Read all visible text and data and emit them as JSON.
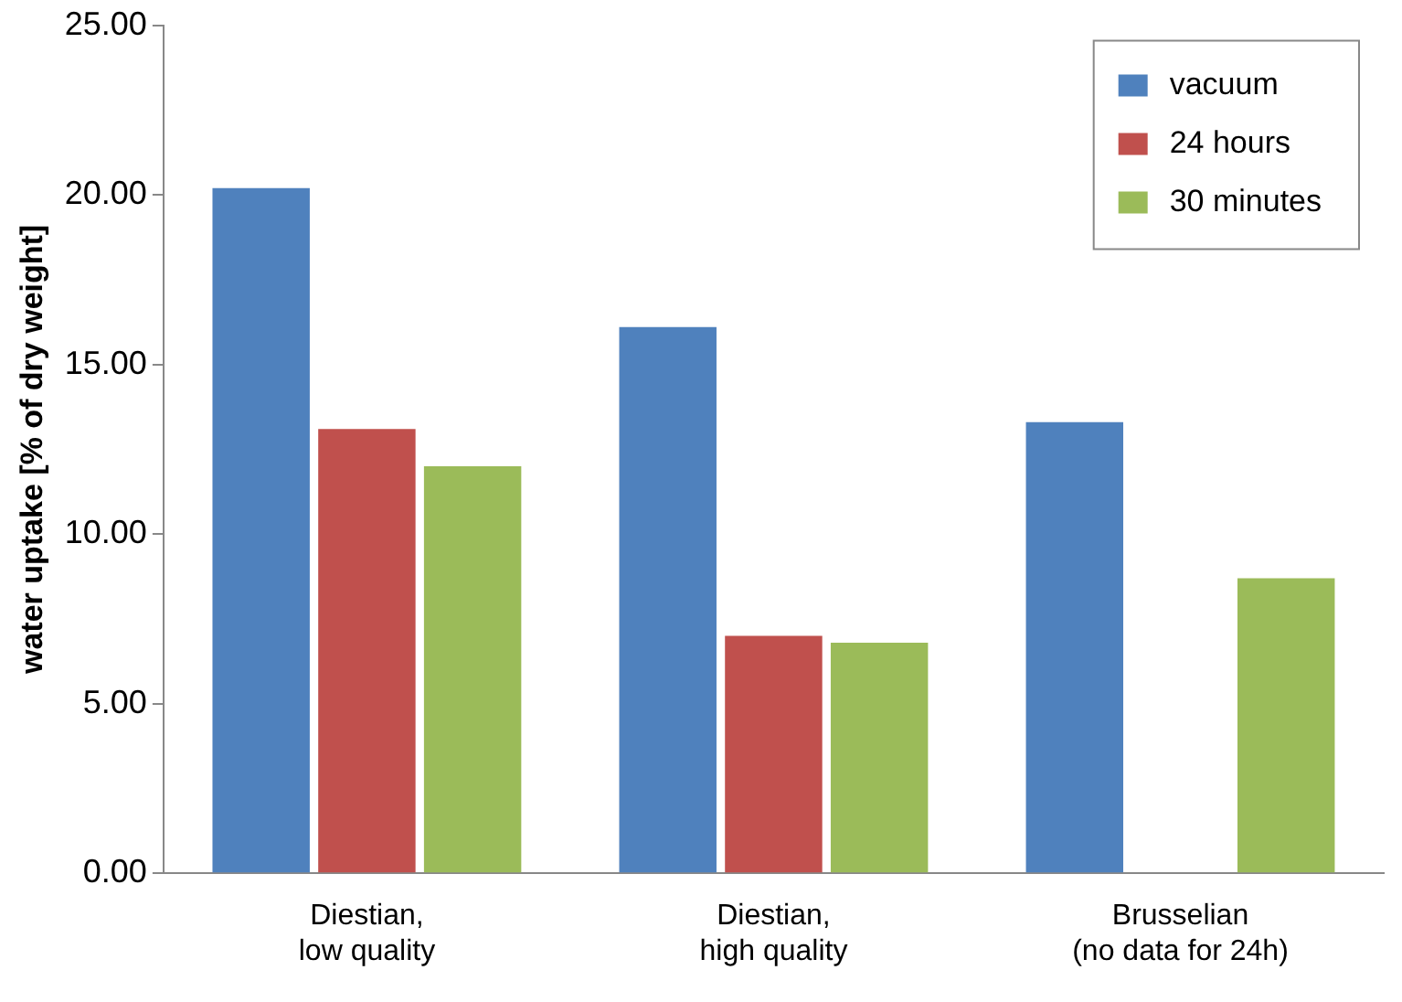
{
  "chart_data": {
    "type": "bar",
    "ylabel": "water uptake [% of dry weight]",
    "categories": [
      "Diestian,\nlow quality",
      "Diestian,\nhigh quality",
      "Brusselian\n(no data for 24h)"
    ],
    "series": [
      {
        "name": "vacuum",
        "color": "#4f81bd",
        "values": [
          20.2,
          16.1,
          13.3
        ]
      },
      {
        "name": "24 hours",
        "color": "#c0504d",
        "values": [
          13.1,
          7.0,
          null
        ]
      },
      {
        "name": "30 minutes",
        "color": "#9bbb59",
        "values": [
          12.0,
          6.8,
          8.7
        ]
      }
    ],
    "ylim": [
      0,
      25
    ],
    "yticks": [
      {
        "value": 0,
        "label": "0.00"
      },
      {
        "value": 5,
        "label": "5.00"
      },
      {
        "value": 10,
        "label": "10.00"
      },
      {
        "value": 15,
        "label": "15.00"
      },
      {
        "value": 20,
        "label": "20.00"
      },
      {
        "value": 25,
        "label": "25.00"
      }
    ],
    "grid": false,
    "legend": "top right"
  }
}
